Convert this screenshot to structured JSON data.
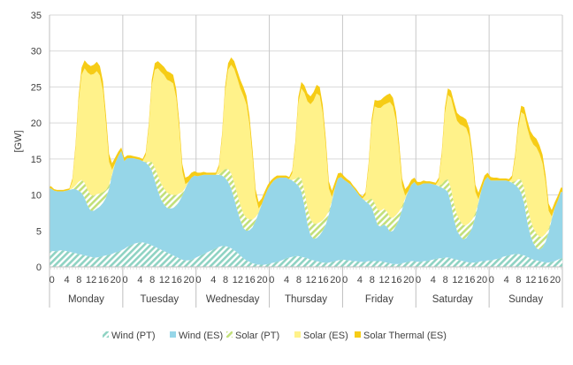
{
  "chart_data": {
    "type": "area",
    "stacked": true,
    "title": "",
    "ylabel": "[GW]",
    "xlabel": "",
    "ylim": [
      0,
      35
    ],
    "y_ticks": [
      0,
      5,
      10,
      15,
      20,
      25,
      30,
      35
    ],
    "grid": "horizontal",
    "legend_position": "bottom",
    "hour_tick_labels": [
      "0",
      "4",
      "8",
      "12",
      "16",
      "20"
    ],
    "days": [
      "Monday",
      "Tuesday",
      "Wednesday",
      "Thursday",
      "Friday",
      "Saturday",
      "Sunday"
    ],
    "hours_per_day": 24,
    "series": [
      {
        "name": "Wind (PT)",
        "color": "#8fd3c3",
        "pattern": "diagonal",
        "values": [
          [
            2.2,
            2.2,
            2.2,
            2.3,
            2.3,
            2.2,
            2.1,
            2.0,
            1.9,
            1.8,
            1.7,
            1.6,
            1.5,
            1.4,
            1.3,
            1.3,
            1.4,
            1.5,
            1.6,
            1.7,
            1.8,
            2.0,
            2.1,
            2.3
          ],
          [
            2.5,
            2.8,
            3.0,
            3.2,
            3.3,
            3.4,
            3.4,
            3.3,
            3.2,
            3.0,
            2.8,
            2.6,
            2.4,
            2.2,
            2.0,
            1.8,
            1.6,
            1.4,
            1.2,
            1.0,
            0.9,
            0.9,
            1.0,
            1.2
          ],
          [
            1.4,
            1.6,
            1.8,
            2.0,
            2.2,
            2.4,
            2.6,
            2.8,
            2.9,
            2.9,
            2.8,
            2.6,
            2.3,
            2.0,
            1.6,
            1.2,
            0.9,
            0.7,
            0.5,
            0.4,
            0.3,
            0.3,
            0.3,
            0.4
          ],
          [
            0.5,
            0.6,
            0.7,
            0.8,
            1.0,
            1.2,
            1.3,
            1.4,
            1.5,
            1.5,
            1.4,
            1.3,
            1.2,
            1.0,
            0.9,
            0.8,
            0.7,
            0.6,
            0.6,
            0.6,
            0.7,
            0.8,
            0.9,
            1.0
          ],
          [
            1.0,
            0.9,
            0.9,
            0.8,
            0.8,
            0.7,
            0.7,
            0.7,
            0.8,
            0.8,
            0.8,
            0.8,
            0.8,
            0.7,
            0.6,
            0.5,
            0.4,
            0.4,
            0.4,
            0.5,
            0.6,
            0.7,
            0.8,
            0.8
          ],
          [
            0.7,
            0.7,
            0.8,
            0.8,
            0.9,
            1.0,
            1.1,
            1.2,
            1.2,
            1.3,
            1.3,
            1.2,
            1.1,
            1.0,
            0.9,
            0.8,
            0.7,
            0.6,
            0.6,
            0.6,
            0.7,
            0.8,
            0.8,
            0.9
          ],
          [
            0.9,
            1.0,
            1.1,
            1.2,
            1.4,
            1.5,
            1.6,
            1.7,
            1.8,
            1.8,
            1.7,
            1.6,
            1.4,
            1.2,
            1.0,
            0.9,
            0.8,
            0.7,
            0.6,
            0.6,
            0.7,
            0.8,
            1.0,
            1.2
          ]
        ]
      },
      {
        "name": "Wind (ES)",
        "color": "#96d6e8",
        "pattern": "solid",
        "values": [
          [
            8.7,
            8.4,
            8.3,
            8.2,
            8.2,
            8.4,
            8.6,
            8.8,
            8.9,
            8.8,
            8.6,
            8.0,
            7.0,
            6.4,
            6.5,
            6.8,
            7.0,
            7.4,
            8.0,
            9.2,
            11.0,
            12.4,
            13.3,
            13.8
          ],
          [
            12.2,
            12.3,
            12.1,
            11.9,
            11.7,
            11.5,
            11.3,
            11.2,
            10.9,
            10.4,
            9.2,
            8.0,
            7.0,
            6.5,
            6.2,
            6.3,
            6.6,
            7.1,
            7.9,
            8.9,
            10.0,
            10.9,
            11.4,
            11.5
          ],
          [
            11.2,
            11.1,
            11.0,
            10.8,
            10.6,
            10.4,
            10.2,
            10.0,
            9.8,
            9.5,
            9.0,
            8.3,
            7.2,
            5.9,
            4.9,
            4.2,
            4.1,
            4.4,
            5.0,
            6.0,
            7.2,
            8.4,
            9.5,
            10.4
          ],
          [
            11.0,
            11.4,
            11.6,
            11.6,
            11.4,
            11.2,
            10.9,
            10.6,
            10.2,
            9.8,
            9.1,
            7.2,
            4.8,
            3.4,
            3.0,
            3.2,
            3.7,
            4.4,
            5.3,
            6.7,
            8.4,
            10.2,
            11.4,
            11.5
          ],
          [
            11.1,
            10.9,
            10.6,
            10.2,
            9.7,
            9.2,
            8.8,
            8.4,
            8.0,
            7.5,
            6.3,
            5.0,
            4.8,
            5.2,
            5.0,
            4.4,
            4.6,
            5.3,
            6.2,
            7.5,
            8.8,
            9.8,
            10.6,
            11.0
          ],
          [
            10.6,
            10.7,
            10.8,
            10.8,
            10.7,
            10.5,
            10.3,
            10.0,
            9.8,
            9.5,
            9.1,
            7.6,
            5.5,
            4.0,
            3.4,
            3.0,
            3.3,
            4.0,
            4.9,
            6.4,
            8.2,
            9.9,
            11.2,
            11.6
          ],
          [
            11.1,
            11.0,
            10.9,
            10.8,
            10.6,
            10.5,
            10.3,
            10.0,
            9.6,
            9.2,
            8.6,
            7.2,
            4.9,
            3.2,
            2.3,
            1.7,
            1.6,
            2.0,
            2.9,
            4.2,
            5.9,
            7.4,
            8.2,
            9.2
          ]
        ]
      },
      {
        "name": "Solar (PT)",
        "color": "#c2e07a",
        "pattern": "diagonal",
        "values": [
          [
            0,
            0,
            0,
            0,
            0,
            0,
            0,
            0.1,
            0.5,
            1.2,
            1.8,
            2.1,
            2.2,
            2.2,
            2.1,
            2.0,
            1.8,
            1.5,
            1.1,
            0.5,
            0.1,
            0,
            0,
            0
          ],
          [
            0,
            0,
            0,
            0,
            0,
            0,
            0,
            0.1,
            0.5,
            1.2,
            1.8,
            2.1,
            2.2,
            2.2,
            2.1,
            2.0,
            1.8,
            1.5,
            1.1,
            0.5,
            0.1,
            0,
            0,
            0
          ],
          [
            0,
            0,
            0,
            0,
            0,
            0,
            0,
            0.1,
            0.5,
            1.2,
            1.8,
            2.1,
            2.2,
            2.2,
            2.1,
            2.0,
            1.8,
            1.5,
            1.1,
            0.5,
            0.1,
            0,
            0,
            0
          ],
          [
            0,
            0,
            0,
            0,
            0,
            0,
            0,
            0.1,
            0.5,
            1.2,
            1.8,
            2.1,
            2.2,
            2.2,
            2.1,
            2.0,
            1.8,
            1.5,
            1.1,
            0.5,
            0.1,
            0,
            0,
            0
          ],
          [
            0,
            0,
            0,
            0,
            0,
            0,
            0,
            0.1,
            0.5,
            1.2,
            1.8,
            2.1,
            2.2,
            2.2,
            2.1,
            2.0,
            1.8,
            1.5,
            1.1,
            0.5,
            0.1,
            0,
            0,
            0
          ],
          [
            0,
            0,
            0,
            0,
            0,
            0,
            0,
            0.1,
            0.5,
            1.2,
            1.8,
            2.1,
            2.2,
            2.2,
            2.1,
            2.0,
            1.8,
            1.5,
            1.1,
            0.5,
            0.1,
            0,
            0,
            0
          ],
          [
            0,
            0,
            0,
            0,
            0,
            0,
            0,
            0.1,
            0.5,
            1.2,
            1.8,
            2.1,
            2.2,
            2.2,
            2.1,
            2.0,
            1.8,
            1.5,
            1.1,
            0.5,
            0.1,
            0,
            0,
            0
          ]
        ]
      },
      {
        "name": "Solar (ES)",
        "color": "#fff28a",
        "pattern": "solid",
        "values": [
          [
            0,
            0,
            0,
            0,
            0,
            0,
            0,
            1.0,
            5.0,
            11.0,
            14.6,
            15.9,
            16.3,
            16.7,
            16.9,
            17.1,
            16.4,
            14.1,
            9.2,
            3.2,
            0.6,
            0,
            0,
            0
          ],
          [
            0,
            0,
            0,
            0,
            0,
            0,
            0,
            0.9,
            4.6,
            10.6,
            13.6,
            14.9,
            15.5,
            15.8,
            15.7,
            15.7,
            15.5,
            13.5,
            8.9,
            2.9,
            0.5,
            0,
            0,
            0
          ],
          [
            0,
            0,
            0,
            0,
            0,
            0,
            0,
            0.9,
            4.6,
            10.6,
            13.8,
            15.1,
            15.8,
            16.1,
            16.2,
            16.4,
            15.8,
            13.2,
            8.6,
            2.9,
            0.5,
            0,
            0,
            0
          ],
          [
            0,
            0,
            0,
            0,
            0,
            0,
            0,
            0.9,
            4.5,
            10.3,
            12.5,
            13.6,
            14.8,
            16.0,
            17.1,
            18.1,
            17.6,
            14.8,
            9.7,
            3.1,
            0.5,
            0,
            0,
            0
          ],
          [
            0,
            0,
            0,
            0,
            0,
            0,
            0,
            0.8,
            4.4,
            10.2,
            13.4,
            14.2,
            14.3,
            14.4,
            15.0,
            16.0,
            15.5,
            13.1,
            8.6,
            2.8,
            0.4,
            0,
            0,
            0
          ],
          [
            0,
            0,
            0,
            0,
            0,
            0,
            0,
            0.7,
            4.0,
            9.3,
            11.7,
            12.6,
            13.0,
            13.1,
            13.4,
            13.8,
            13.5,
            12.0,
            8.3,
            2.9,
            0.4,
            0,
            0,
            0
          ],
          [
            0,
            0,
            0,
            0,
            0,
            0,
            0,
            0.5,
            3.1,
            6.9,
            9.4,
            10.3,
            10.8,
            11.2,
            11.6,
            12.0,
            11.5,
            10.2,
            7.1,
            2.5,
            0.3,
            0,
            0,
            0
          ]
        ]
      },
      {
        "name": "Solar Thermal (ES)",
        "color": "#f6cc16",
        "pattern": "solid",
        "values": [
          [
            0.3,
            0.2,
            0.2,
            0.2,
            0.2,
            0.2,
            0.2,
            0.4,
            0.6,
            0.8,
            1.0,
            1.1,
            1.2,
            1.2,
            1.3,
            1.3,
            1.3,
            1.3,
            1.2,
            1.1,
            0.9,
            0.8,
            0.6,
            0.5
          ],
          [
            0.5,
            0.4,
            0.4,
            0.3,
            0.3,
            0.3,
            0.3,
            0.4,
            0.6,
            0.8,
            0.9,
            1.0,
            1.1,
            1.1,
            1.2,
            1.2,
            1.2,
            1.2,
            1.1,
            1.0,
            0.9,
            0.8,
            0.7,
            0.6
          ],
          [
            0.5,
            0.4,
            0.4,
            0.3,
            0.3,
            0.3,
            0.3,
            0.4,
            0.6,
            0.8,
            0.9,
            1.0,
            1.1,
            1.1,
            1.2,
            1.2,
            1.2,
            1.2,
            1.1,
            1.0,
            0.9,
            0.8,
            0.7,
            0.6
          ],
          [
            0.5,
            0.4,
            0.4,
            0.3,
            0.3,
            0.3,
            0.3,
            0.4,
            0.6,
            0.8,
            0.9,
            1.0,
            1.1,
            1.1,
            1.2,
            1.2,
            1.2,
            1.2,
            1.1,
            1.0,
            0.9,
            0.8,
            0.7,
            0.6
          ],
          [
            0.5,
            0.4,
            0.4,
            0.3,
            0.3,
            0.3,
            0.3,
            0.4,
            0.6,
            0.8,
            0.9,
            1.0,
            1.1,
            1.1,
            1.2,
            1.2,
            1.2,
            1.2,
            1.1,
            1.0,
            0.9,
            0.8,
            0.7,
            0.6
          ],
          [
            0.5,
            0.4,
            0.4,
            0.3,
            0.3,
            0.3,
            0.3,
            0.4,
            0.6,
            0.8,
            0.9,
            1.0,
            1.1,
            1.1,
            1.2,
            1.2,
            1.2,
            1.2,
            1.1,
            1.0,
            0.9,
            0.8,
            0.7,
            0.6
          ],
          [
            0.5,
            0.4,
            0.4,
            0.3,
            0.3,
            0.3,
            0.3,
            0.4,
            0.6,
            0.8,
            0.9,
            1.0,
            1.1,
            1.1,
            1.2,
            1.2,
            1.2,
            1.2,
            1.1,
            1.0,
            0.9,
            0.8,
            0.7,
            0.6
          ]
        ]
      }
    ]
  }
}
